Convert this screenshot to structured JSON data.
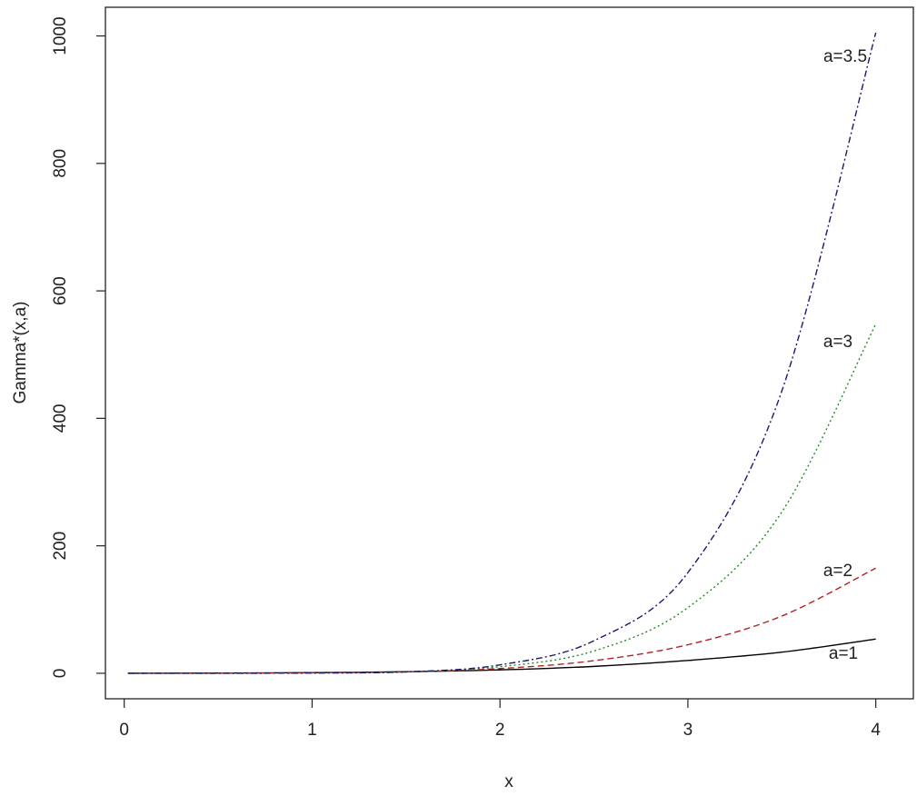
{
  "chart_data": {
    "type": "line",
    "title": "",
    "xlabel": "x",
    "ylabel": "Gamma*(x,a)",
    "xlim": [
      -0.1,
      4.2
    ],
    "ylim": [
      -40,
      1045
    ],
    "x_ticks": [
      0,
      1,
      2,
      3,
      4
    ],
    "y_ticks": [
      0,
      200,
      400,
      600,
      800,
      1000
    ],
    "grid": false,
    "legend": "none",
    "series": [
      {
        "name": "a=1",
        "color": "#000000",
        "dash": "solid",
        "x": [
          0.02,
          0.5,
          1.0,
          1.5,
          2.0,
          2.5,
          3.0,
          3.5,
          4.0
        ],
        "y": [
          0.0,
          0.3,
          1.0,
          2.4,
          5.3,
          10.8,
          20.1,
          33.1,
          53.6
        ]
      },
      {
        "name": "a=2",
        "color": "#b22222",
        "dash": "dashed",
        "x": [
          0.02,
          0.5,
          1.0,
          1.5,
          2.0,
          2.5,
          3.0,
          3.5,
          4.0
        ],
        "y": [
          0.0,
          0.1,
          0.7,
          2.2,
          7.4,
          19.8,
          44.8,
          89.8,
          165.0
        ]
      },
      {
        "name": "a=3",
        "color": "#228b22",
        "dash": "dotted",
        "x": [
          0.02,
          0.5,
          1.0,
          1.5,
          2.0,
          2.5,
          3.0,
          3.5,
          4.0
        ],
        "y": [
          0.0,
          0.04,
          0.4,
          2.0,
          10.3,
          35.0,
          103.0,
          253.0,
          548.0
        ]
      },
      {
        "name": "a=3.5",
        "color": "#191970",
        "dash": "dashdot",
        "x": [
          0.02,
          0.5,
          1.0,
          1.5,
          2.0,
          2.5,
          3.0,
          3.5,
          4.0
        ],
        "y": [
          0.0,
          0.03,
          0.4,
          2.2,
          13.2,
          51.0,
          158.0,
          443.0,
          1005.0
        ]
      }
    ]
  }
}
